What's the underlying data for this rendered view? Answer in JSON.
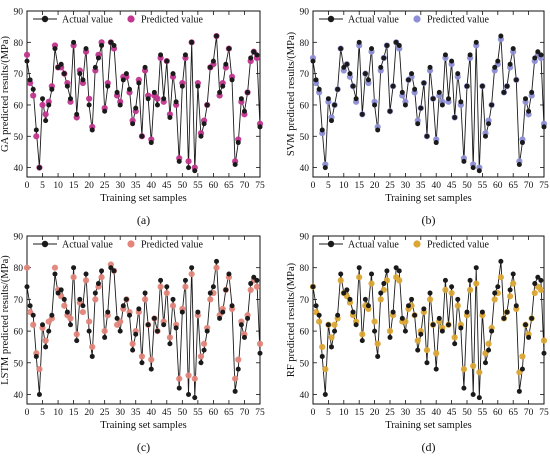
{
  "chart_data": [
    {
      "type": "line",
      "panel_label": "(a)",
      "xlabel": "Training set samples",
      "ylabel": "GA predicted results/(MPa)",
      "xlim": [
        0,
        75
      ],
      "ylim": [
        37,
        90
      ],
      "xticks": [
        0,
        5,
        10,
        15,
        20,
        25,
        30,
        35,
        40,
        45,
        50,
        55,
        60,
        65,
        70,
        75
      ],
      "yticks": [
        40,
        50,
        60,
        70,
        80,
        90
      ],
      "legend_position": "top-left",
      "series": [
        {
          "name": "Actual value",
          "role": "actual",
          "color": "#1a1a1a"
        },
        {
          "name": "Predicted value",
          "role": "predicted",
          "color": "#c2368f"
        }
      ]
    },
    {
      "type": "line",
      "panel_label": "(b)",
      "xlabel": "Training set samples",
      "ylabel": "SVM predicted results/(MPa)",
      "xlim": [
        0,
        75
      ],
      "ylim": [
        37,
        90
      ],
      "xticks": [
        0,
        5,
        10,
        15,
        20,
        25,
        30,
        35,
        40,
        45,
        50,
        55,
        60,
        65,
        70,
        75
      ],
      "yticks": [
        40,
        50,
        60,
        70,
        80,
        90
      ],
      "legend_position": "top-left",
      "series": [
        {
          "name": "Actual value",
          "role": "actual",
          "color": "#1a1a1a"
        },
        {
          "name": "Predicted value",
          "role": "predicted",
          "color": "#8e8fd6"
        }
      ]
    },
    {
      "type": "line",
      "panel_label": "(c)",
      "xlabel": "Training set samples",
      "ylabel": "LSTM predicted results/(MPa)",
      "xlim": [
        0,
        75
      ],
      "ylim": [
        37,
        90
      ],
      "xticks": [
        0,
        5,
        10,
        15,
        20,
        25,
        30,
        35,
        40,
        45,
        50,
        55,
        60,
        65,
        70,
        75
      ],
      "yticks": [
        40,
        50,
        60,
        70,
        80,
        90
      ],
      "legend_position": "top-left",
      "series": [
        {
          "name": "Actual value",
          "role": "actual",
          "color": "#1a1a1a"
        },
        {
          "name": "Predicted value",
          "role": "predicted",
          "color": "#e3857a"
        }
      ]
    },
    {
      "type": "line",
      "panel_label": "(d)",
      "xlabel": "Training set samples",
      "ylabel": "RF predicted results/(MPa)",
      "xlim": [
        0,
        75
      ],
      "ylim": [
        37,
        90
      ],
      "xticks": [
        0,
        5,
        10,
        15,
        20,
        25,
        30,
        35,
        40,
        45,
        50,
        55,
        60,
        65,
        70,
        75
      ],
      "yticks": [
        40,
        50,
        60,
        70,
        80,
        90
      ],
      "legend_position": "top-left",
      "series": [
        {
          "name": "Actual value",
          "role": "actual",
          "color": "#1a1a1a"
        },
        {
          "name": "Predicted value",
          "role": "predicted",
          "color": "#dca634"
        }
      ]
    }
  ],
  "samples": {
    "x": [
      0,
      1,
      2,
      3,
      4,
      5,
      6,
      7,
      8,
      9,
      10,
      11,
      12,
      13,
      14,
      15,
      16,
      17,
      18,
      19,
      20,
      21,
      22,
      23,
      24,
      25,
      26,
      27,
      28,
      29,
      30,
      31,
      32,
      33,
      34,
      35,
      36,
      37,
      38,
      39,
      40,
      41,
      42,
      43,
      44,
      45,
      46,
      47,
      48,
      49,
      50,
      51,
      52,
      53,
      54,
      55,
      56,
      57,
      58,
      59,
      60,
      61,
      62,
      63,
      64,
      65,
      66,
      67,
      68,
      69,
      70,
      71,
      72,
      73,
      74,
      75
    ],
    "actual": [
      74,
      68,
      65,
      52,
      40,
      62,
      55,
      60,
      65,
      78,
      72,
      73,
      70,
      66,
      62,
      80,
      57,
      70,
      68,
      78,
      60,
      52,
      72,
      75,
      79,
      58,
      66,
      80,
      79,
      64,
      60,
      68,
      70,
      65,
      54,
      59,
      67,
      50,
      72,
      62,
      48,
      64,
      60,
      76,
      62,
      74,
      56,
      70,
      61,
      42,
      66,
      76,
      40,
      80,
      39,
      66,
      50,
      54,
      60,
      72,
      74,
      82,
      64,
      66,
      73,
      78,
      68,
      41,
      48,
      62,
      58,
      64,
      75,
      77,
      76,
      53
    ],
    "ga": [
      76,
      67,
      63,
      50,
      40,
      60,
      57,
      61,
      66,
      79,
      72,
      72,
      70,
      67,
      61,
      79,
      56,
      71,
      67,
      77,
      62,
      53,
      71,
      76,
      80,
      59,
      67,
      80,
      78,
      63,
      61,
      69,
      69,
      64,
      55,
      58,
      68,
      50,
      71,
      63,
      49,
      63,
      62,
      75,
      61,
      74,
      57,
      69,
      60,
      43,
      67,
      75,
      42,
      80,
      40,
      67,
      51,
      55,
      60,
      72,
      73,
      82,
      63,
      67,
      72,
      78,
      69,
      42,
      49,
      61,
      57,
      64,
      74,
      77,
      75,
      54
    ],
    "svm": [
      75,
      67,
      64,
      51,
      41,
      61,
      56,
      60,
      65,
      78,
      71,
      73,
      69,
      66,
      61,
      79,
      57,
      70,
      67,
      77,
      61,
      53,
      71,
      75,
      79,
      58,
      66,
      80,
      78,
      63,
      61,
      68,
      69,
      64,
      55,
      59,
      67,
      50,
      71,
      62,
      49,
      63,
      61,
      75,
      61,
      73,
      56,
      69,
      60,
      43,
      66,
      75,
      41,
      79,
      40,
      66,
      51,
      55,
      60,
      71,
      73,
      81,
      64,
      66,
      72,
      77,
      68,
      42,
      49,
      61,
      57,
      63,
      74,
      76,
      75,
      54
    ],
    "lstm": [
      80,
      66,
      62,
      53,
      48,
      61,
      57,
      63,
      64,
      80,
      73,
      71,
      68,
      65,
      64,
      77,
      59,
      69,
      66,
      76,
      63,
      55,
      70,
      74,
      77,
      60,
      65,
      81,
      79,
      62,
      63,
      67,
      70,
      66,
      56,
      60,
      66,
      52,
      70,
      62,
      51,
      64,
      60,
      74,
      63,
      72,
      58,
      68,
      62,
      45,
      67,
      74,
      46,
      78,
      45,
      65,
      52,
      56,
      61,
      70,
      72,
      80,
      65,
      67,
      73,
      77,
      67,
      45,
      51,
      63,
      59,
      65,
      73,
      76,
      74,
      56
    ],
    "rf": [
      74,
      66,
      63,
      55,
      48,
      62,
      58,
      62,
      64,
      76,
      72,
      71,
      69,
      65,
      63,
      77,
      59,
      68,
      67,
      75,
      63,
      56,
      70,
      73,
      76,
      60,
      65,
      77,
      76,
      63,
      63,
      67,
      68,
      65,
      57,
      60,
      66,
      54,
      70,
      62,
      53,
      63,
      61,
      73,
      62,
      72,
      58,
      68,
      62,
      48,
      65,
      73,
      49,
      75,
      47,
      65,
      53,
      56,
      61,
      70,
      72,
      77,
      64,
      66,
      71,
      75,
      67,
      47,
      52,
      62,
      59,
      64,
      72,
      74,
      73,
      57
    ]
  }
}
